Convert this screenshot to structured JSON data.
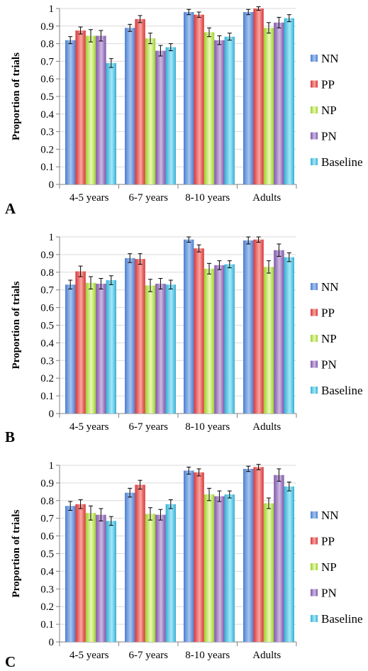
{
  "chart_data": [
    {
      "type": "bar",
      "panel_label": "A",
      "ylabel": "Proportion of trials",
      "xlabel": "",
      "ylim": [
        0,
        1
      ],
      "yticks": [
        "0",
        "0.1",
        "0.2",
        "0.3",
        "0.4",
        "0.5",
        "0.6",
        "0.7",
        "0.8",
        "0.9",
        "1"
      ],
      "categories": [
        "4-5 years",
        "6-7 years",
        "8-10 years",
        "Adults"
      ],
      "series": [
        {
          "name": "NN",
          "values": [
            0.82,
            0.89,
            0.98,
            0.98
          ],
          "errors": [
            0.02,
            0.02,
            0.015,
            0.015
          ]
        },
        {
          "name": "PP",
          "values": [
            0.875,
            0.94,
            0.965,
            1.0
          ],
          "errors": [
            0.02,
            0.02,
            0.015,
            0.01
          ]
        },
        {
          "name": "NP",
          "values": [
            0.845,
            0.83,
            0.865,
            0.89
          ],
          "errors": [
            0.035,
            0.03,
            0.025,
            0.03
          ]
        },
        {
          "name": "PN",
          "values": [
            0.845,
            0.76,
            0.82,
            0.92
          ],
          "errors": [
            0.03,
            0.03,
            0.025,
            0.03
          ]
        },
        {
          "name": "Baseline",
          "values": [
            0.69,
            0.78,
            0.84,
            0.945
          ],
          "errors": [
            0.025,
            0.02,
            0.02,
            0.02
          ]
        }
      ],
      "grid": true,
      "legend": "right"
    },
    {
      "type": "bar",
      "panel_label": "B",
      "ylabel": "Proportion of trials",
      "xlabel": "",
      "ylim": [
        0,
        1
      ],
      "yticks": [
        "0",
        "0.1",
        "0.2",
        "0.3",
        "0.4",
        "0.5",
        "0.6",
        "0.7",
        "0.8",
        "0.9",
        "1"
      ],
      "categories": [
        "4-5 years",
        "6-7 years",
        "8-10 years",
        "Adults"
      ],
      "series": [
        {
          "name": "NN",
          "values": [
            0.73,
            0.88,
            0.985,
            0.98
          ],
          "errors": [
            0.025,
            0.025,
            0.015,
            0.02
          ]
        },
        {
          "name": "PP",
          "values": [
            0.805,
            0.875,
            0.935,
            0.985
          ],
          "errors": [
            0.03,
            0.03,
            0.02,
            0.015
          ]
        },
        {
          "name": "NP",
          "values": [
            0.74,
            0.725,
            0.82,
            0.83
          ],
          "errors": [
            0.035,
            0.035,
            0.03,
            0.035
          ]
        },
        {
          "name": "PN",
          "values": [
            0.735,
            0.735,
            0.84,
            0.925
          ],
          "errors": [
            0.03,
            0.03,
            0.025,
            0.035
          ]
        },
        {
          "name": "Baseline",
          "values": [
            0.755,
            0.73,
            0.845,
            0.885
          ],
          "errors": [
            0.025,
            0.025,
            0.02,
            0.025
          ]
        }
      ],
      "grid": true,
      "legend": "right"
    },
    {
      "type": "bar",
      "panel_label": "C",
      "ylabel": "Proportion of trials",
      "xlabel": "",
      "ylim": [
        0,
        1
      ],
      "yticks": [
        "0",
        "0.1",
        "0.2",
        "0.3",
        "0.4",
        "0.5",
        "0.6",
        "0.7",
        "0.8",
        "0.9",
        "1"
      ],
      "categories": [
        "4-5 years",
        "6-7 years",
        "8-10 years",
        "Adults"
      ],
      "series": [
        {
          "name": "NN",
          "values": [
            0.77,
            0.845,
            0.97,
            0.98
          ],
          "errors": [
            0.025,
            0.025,
            0.02,
            0.015
          ]
        },
        {
          "name": "PP",
          "values": [
            0.78,
            0.89,
            0.96,
            0.99
          ],
          "errors": [
            0.025,
            0.025,
            0.02,
            0.015
          ]
        },
        {
          "name": "NP",
          "values": [
            0.73,
            0.725,
            0.835,
            0.785
          ],
          "errors": [
            0.04,
            0.035,
            0.035,
            0.03
          ]
        },
        {
          "name": "PN",
          "values": [
            0.72,
            0.72,
            0.825,
            0.945
          ],
          "errors": [
            0.035,
            0.03,
            0.03,
            0.035
          ]
        },
        {
          "name": "Baseline",
          "values": [
            0.685,
            0.78,
            0.835,
            0.88
          ],
          "errors": [
            0.025,
            0.025,
            0.02,
            0.025
          ]
        }
      ],
      "grid": true,
      "legend": "right"
    }
  ],
  "series_colors": {
    "NN": [
      "#4c7fd0",
      "#a7c5f0"
    ],
    "PP": [
      "#d9343a",
      "#f7a8a0"
    ],
    "NP": [
      "#9bd12a",
      "#ecf9b8"
    ],
    "PN": [
      "#8055a8",
      "#cdbbe3"
    ],
    "Baseline": [
      "#35b0d5",
      "#a6e8f7"
    ]
  }
}
